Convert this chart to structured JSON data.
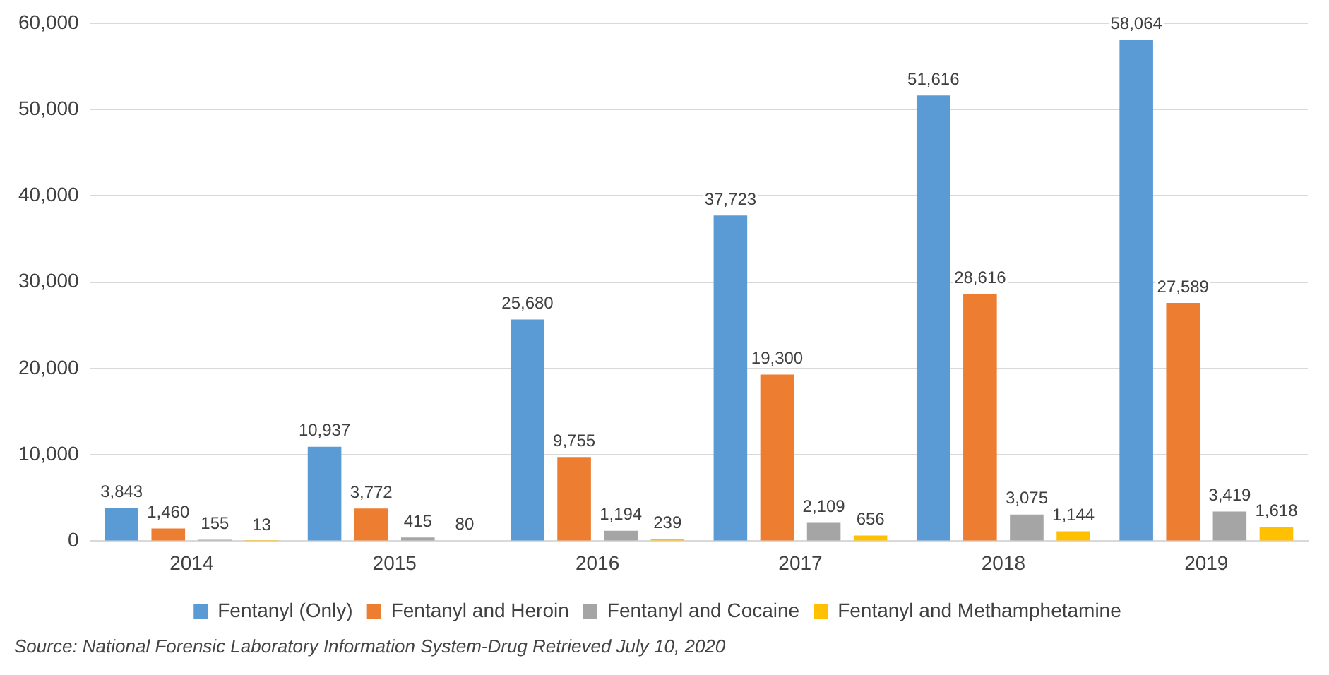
{
  "chart_data": {
    "type": "bar",
    "categories": [
      "2014",
      "2015",
      "2016",
      "2017",
      "2018",
      "2019"
    ],
    "series": [
      {
        "name": "Fentanyl (Only)",
        "color": "#5b9bd5",
        "values": [
          3843,
          10937,
          25680,
          37723,
          51616,
          58064
        ],
        "value_labels": [
          "3,843",
          "10,937",
          "25,680",
          "37,723",
          "51,616",
          "58,064"
        ]
      },
      {
        "name": "Fentanyl and Heroin",
        "color": "#ed7d31",
        "values": [
          1460,
          3772,
          9755,
          19300,
          28616,
          27589
        ],
        "value_labels": [
          "1,460",
          "3,772",
          "9,755",
          "19,300",
          "28,616",
          "27,589"
        ]
      },
      {
        "name": "Fentanyl and Cocaine",
        "color": "#a5a5a5",
        "values": [
          155,
          415,
          1194,
          2109,
          3075,
          3419
        ],
        "value_labels": [
          "155",
          "415",
          "1,194",
          "2,109",
          "3,075",
          "3,419"
        ]
      },
      {
        "name": "Fentanyl and Methamphetamine",
        "color": "#ffc000",
        "values": [
          13,
          80,
          239,
          656,
          1144,
          1618
        ],
        "value_labels": [
          "13",
          "80",
          "239",
          "656",
          "1,144",
          "1,618"
        ]
      }
    ],
    "ylim": [
      0,
      60000
    ],
    "yticks": [
      {
        "value": 0,
        "label": "0"
      },
      {
        "value": 10000,
        "label": "10,000"
      },
      {
        "value": 20000,
        "label": "20,000"
      },
      {
        "value": 30000,
        "label": "30,000"
      },
      {
        "value": 40000,
        "label": "40,000"
      },
      {
        "value": 50000,
        "label": "50,000"
      },
      {
        "value": 60000,
        "label": "60,000"
      }
    ],
    "grid": "y",
    "legend": "bottom",
    "annotations": [
      "Source: National Forensic Laboratory Information System-Drug Retrieved July 10, 2020"
    ]
  }
}
